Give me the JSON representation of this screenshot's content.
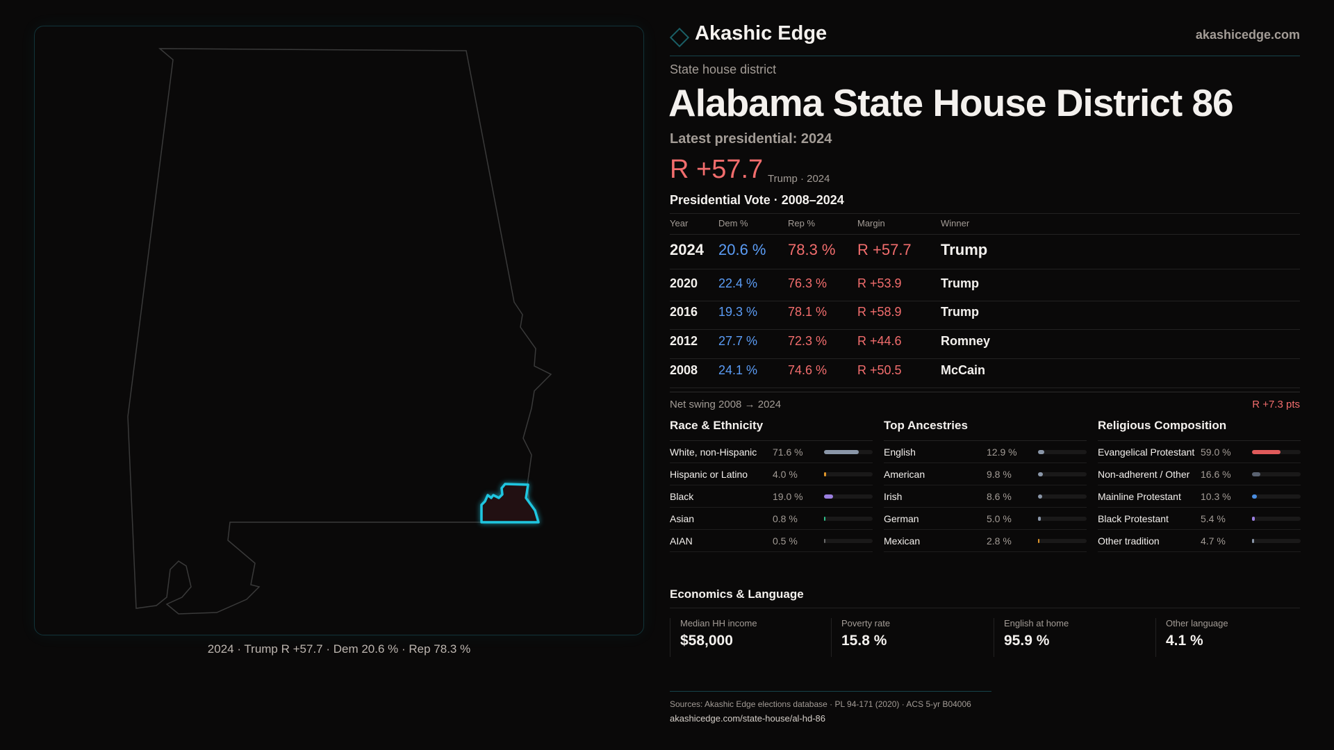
{
  "brand": {
    "name": "Akashic Edge",
    "site": "akashicedge.com"
  },
  "colors": {
    "accent": "#1fc6e0",
    "rep": "#f26d6d",
    "dem": "#5b9cf5",
    "bg": "#0a0909"
  },
  "header": {
    "kind": "State house district",
    "title": "Alabama State House District 86",
    "latest": "Latest presidential: 2024",
    "margin": "R +57.7",
    "margin_sub": "Trump · 2024"
  },
  "map": {
    "caption": "2024 · Trump R +57.7 · Dem 20.6 % · Rep 78.3 %"
  },
  "pres": {
    "title": "Presidential Vote · 2008–2024",
    "columns": [
      "Year",
      "Dem %",
      "Rep %",
      "Margin",
      "Winner"
    ],
    "rows": [
      [
        "2024",
        "20.6 %",
        "78.3 %",
        "R +57.7",
        "Trump"
      ],
      [
        "2020",
        "22.4 %",
        "76.3 %",
        "R +53.9",
        "Trump"
      ],
      [
        "2016",
        "19.3 %",
        "78.1 %",
        "R +58.9",
        "Trump"
      ],
      [
        "2012",
        "27.7 %",
        "72.3 %",
        "R +44.6",
        "Romney"
      ],
      [
        "2008",
        "24.1 %",
        "74.6 %",
        "R +50.5",
        "McCain"
      ]
    ],
    "swing_label": "Net swing 2008 → 2024",
    "swing_value": "R +7.3 pts"
  },
  "race": {
    "title": "Race & Ethnicity",
    "items": [
      {
        "label": "White, non-Hispanic",
        "value": "71.6 %",
        "pct": 71.6,
        "color": "#8a96a8"
      },
      {
        "label": "Hispanic or Latino",
        "value": "4.0 %",
        "pct": 4.0,
        "color": "#e0962a"
      },
      {
        "label": "Black",
        "value": "19.0 %",
        "pct": 19.0,
        "color": "#9b7fe0"
      },
      {
        "label": "Asian",
        "value": "0.8 %",
        "pct": 0.8,
        "color": "#2fc08a"
      },
      {
        "label": "AIAN",
        "value": "0.5 %",
        "pct": 0.5,
        "color": "#6a6a6a"
      }
    ]
  },
  "ancestry": {
    "title": "Top Ancestries",
    "items": [
      {
        "label": "English",
        "value": "12.9 %",
        "pct": 12.9,
        "color": "#8a96a8"
      },
      {
        "label": "American",
        "value": "9.8 %",
        "pct": 9.8,
        "color": "#8a96a8"
      },
      {
        "label": "Irish",
        "value": "8.6 %",
        "pct": 8.6,
        "color": "#8a96a8"
      },
      {
        "label": "German",
        "value": "5.0 %",
        "pct": 5.0,
        "color": "#8a96a8"
      },
      {
        "label": "Mexican",
        "value": "2.8 %",
        "pct": 2.8,
        "color": "#e0962a"
      }
    ]
  },
  "religion": {
    "title": "Religious Composition",
    "items": [
      {
        "label": "Evangelical Protestant",
        "value": "59.0 %",
        "pct": 59.0,
        "color": "#e05a5a"
      },
      {
        "label": "Non-adherent / Other",
        "value": "16.6 %",
        "pct": 16.6,
        "color": "#5a6270"
      },
      {
        "label": "Mainline Protestant",
        "value": "10.3 %",
        "pct": 10.3,
        "color": "#4a8de0"
      },
      {
        "label": "Black Protestant",
        "value": "5.4 %",
        "pct": 5.4,
        "color": "#9b7fe0"
      },
      {
        "label": "Other tradition",
        "value": "4.7 %",
        "pct": 4.7,
        "color": "#8a96a8"
      }
    ]
  },
  "econ": {
    "title": "Economics & Language",
    "cards": [
      {
        "label": "Median HH income",
        "value": "$58,000"
      },
      {
        "label": "Poverty rate",
        "value": "15.8 %"
      },
      {
        "label": "English at home",
        "value": "95.9 %"
      },
      {
        "label": "Other language",
        "value": "4.1 %"
      }
    ]
  },
  "footer": {
    "sources": "Sources: Akashic Edge elections database · PL 94-171 (2020) · ACS 5-yr B04006",
    "url": "akashicedge.com/state-house/al-hd-86"
  }
}
